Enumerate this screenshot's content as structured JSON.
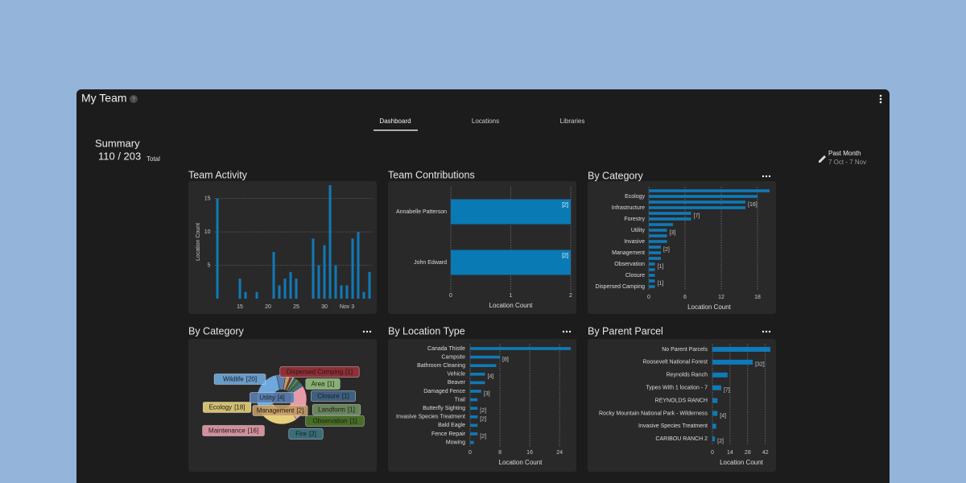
{
  "header": {
    "title": "My Team",
    "help": "?"
  },
  "tabs": [
    "Dashboard",
    "Locations",
    "Libraries"
  ],
  "summary": {
    "title": "Summary",
    "count": "110 / 203",
    "unit": "Total"
  },
  "period": {
    "label": "Past Month",
    "range": "7 Oct - 7 Nov"
  },
  "chart_data": [
    {
      "type": "bar",
      "title": "Team Activity",
      "ylabel": "Location Count",
      "categories": [
        null,
        null,
        null,
        null,
        "15",
        null,
        null,
        null,
        null,
        "20",
        null,
        null,
        null,
        null,
        "25",
        null,
        null,
        null,
        null,
        "30",
        null,
        null,
        null,
        "Nov 3",
        null,
        null,
        null,
        null
      ],
      "values": [
        15,
        0,
        0,
        0,
        3,
        1,
        0,
        1,
        0,
        0,
        7,
        2,
        3,
        4,
        3,
        0,
        0,
        9,
        5,
        8,
        17,
        5,
        2,
        2,
        9,
        10,
        1,
        4
      ],
      "color": "#0f7ab8",
      "ylim": [
        0,
        17
      ],
      "yticks": [
        5,
        10,
        15
      ],
      "grid": true
    },
    {
      "type": "hbar",
      "title": "Team Contributions",
      "xlabel": "Location Count",
      "categories": [
        "Annabelle Patterson",
        "John Edward"
      ],
      "values": [
        2,
        2
      ],
      "value_labels": [
        "[2]",
        "[2]"
      ],
      "color": "#0a7ab5",
      "xlim": [
        0,
        2
      ],
      "xticks": [
        0,
        1,
        2
      ],
      "grid": true
    },
    {
      "type": "hbar",
      "title": "By Category",
      "xlabel": "Location Count",
      "categories": [
        null,
        "Ecology",
        null,
        "Infrastructure",
        null,
        "Forestry",
        null,
        "Utility",
        null,
        "Invasive",
        null,
        "Management",
        null,
        "Observation",
        null,
        "Closure",
        null,
        "Dispersed Camping"
      ],
      "values": [
        20,
        18,
        16,
        16,
        7,
        7,
        4,
        3,
        3,
        3,
        2,
        2,
        2,
        1,
        1,
        1,
        1,
        1
      ],
      "value_labels": [
        null,
        null,
        "[16]",
        null,
        "[7]",
        null,
        null,
        "[3]",
        null,
        null,
        "[2]",
        null,
        null,
        "[1]",
        null,
        null,
        "[1]",
        null
      ],
      "color": "#0f7ab8",
      "xlim": [
        0,
        20
      ],
      "xticks": [
        0,
        6,
        12,
        18
      ],
      "grid": true
    },
    {
      "type": "pie",
      "title": "By Category",
      "categories": [
        "Dispersed Camping",
        "Area",
        "Closure",
        "Landform",
        "Observation",
        "Fire",
        "Maintenance",
        "Ecology",
        "Wildlife",
        "Utility",
        "Management"
      ],
      "values": [
        1,
        1,
        1,
        1,
        1,
        2,
        16,
        18,
        20,
        4,
        2
      ],
      "value_labels": [
        "[1]",
        "[1]",
        "[1]",
        "[1]",
        "[1]",
        "[2]",
        "[16]",
        "[18]",
        "[20]",
        "[4]",
        "[2]"
      ],
      "colors": [
        "#9c2f35",
        "#8fc07a",
        "#3f6688",
        "#6f8f60",
        "#4a7526",
        "#3a7585",
        "#e79aa8",
        "#e6cf78",
        "#6fa8dc",
        "#5a7eb0",
        "#c49b62"
      ]
    },
    {
      "type": "hbar",
      "title": "By Location Type",
      "xlabel": "Location Count",
      "categories": [
        "Canada Thistle",
        "Campsite",
        "Bathroom Cleaning",
        "Vehicle",
        "Beaver",
        "Damaged Fence",
        "Trail",
        "Butterfly Sighting",
        "Invasive Species Treatment",
        "Bald Eagle",
        "Fence Repair",
        "Mowing"
      ],
      "values": [
        27,
        8,
        7,
        4,
        4,
        3,
        2,
        2,
        2,
        2,
        2,
        1
      ],
      "value_labels": [
        null,
        "[8]",
        null,
        "[4]",
        null,
        "[3]",
        null,
        "[2]",
        "[2]",
        null,
        "[2]",
        null
      ],
      "color": "#0f7ab8",
      "xlim": [
        0,
        27
      ],
      "xticks": [
        0,
        8,
        16,
        24
      ],
      "grid": true
    },
    {
      "type": "hbar",
      "title": "By Parent Parcel",
      "xlabel": "Location Count",
      "categories": [
        "No Parent Parcels",
        "Roosevelt National Forest",
        "Reynolds Ranch",
        "Types With 1 location - 7",
        "REYNOLDS RANCH",
        "Rocky Mountain National Park - Wilderness",
        "Invasive Species Treatment",
        "CARIBOU RANCH 2"
      ],
      "values": [
        46,
        32,
        12,
        7,
        4,
        4,
        3,
        2
      ],
      "value_labels": [
        null,
        "[32]",
        null,
        "[7]",
        null,
        "[4]",
        null,
        "[2]"
      ],
      "color": "#0f7ab8",
      "xlim": [
        0,
        46
      ],
      "xticks": [
        0,
        14,
        28,
        42
      ],
      "grid": true
    }
  ]
}
